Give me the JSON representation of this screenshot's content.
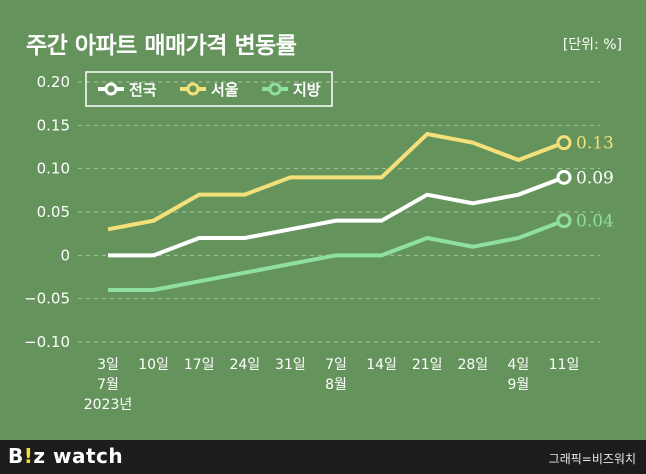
{
  "title": "주간 아파트 매매가격 변동률",
  "unit": "[단위: %]",
  "brand": {
    "prefix": "B",
    "accent": "!",
    "z": "z",
    "suffix": " watch"
  },
  "credit": "그래픽=비즈워치",
  "colors": {
    "background": "#65935c",
    "national": "#ffffff",
    "seoul": "#f3e07a",
    "regional": "#8fe0a0",
    "grid": "#a9c49f",
    "footer": "#1c1c1c"
  },
  "chart_data": {
    "type": "line",
    "categories": [
      "3일",
      "10일",
      "17일",
      "24일",
      "31일",
      "7일",
      "14일",
      "21일",
      "28일",
      "4일",
      "11일"
    ],
    "month_labels": {
      "0": "7월",
      "5": "8월",
      "9": "9월"
    },
    "year_label": "2023년",
    "ylim": [
      -0.1,
      0.2
    ],
    "yticks": [
      -0.1,
      -0.05,
      0,
      0.05,
      0.1,
      0.15,
      0.2
    ],
    "ytick_labels": [
      "−0.10",
      "−0.05",
      "0",
      "0.05",
      "0.10",
      "0.15",
      "0.20"
    ],
    "grid": true,
    "legend_placement": "top-left",
    "series": [
      {
        "name": "전국",
        "color": "#ffffff",
        "values": [
          0,
          0,
          0.02,
          0.02,
          0.03,
          0.04,
          0.04,
          0.07,
          0.06,
          0.07,
          0.09
        ],
        "end_label": "0.09"
      },
      {
        "name": "서울",
        "color": "#f3e07a",
        "values": [
          0.03,
          0.04,
          0.07,
          0.07,
          0.09,
          0.09,
          0.09,
          0.14,
          0.13,
          0.11,
          0.13
        ],
        "end_label": "0.13"
      },
      {
        "name": "지방",
        "color": "#8fe0a0",
        "values": [
          -0.04,
          -0.04,
          -0.03,
          -0.02,
          -0.01,
          0,
          0,
          0.02,
          0.01,
          0.02,
          0.04
        ],
        "end_label": "0.04"
      }
    ]
  }
}
